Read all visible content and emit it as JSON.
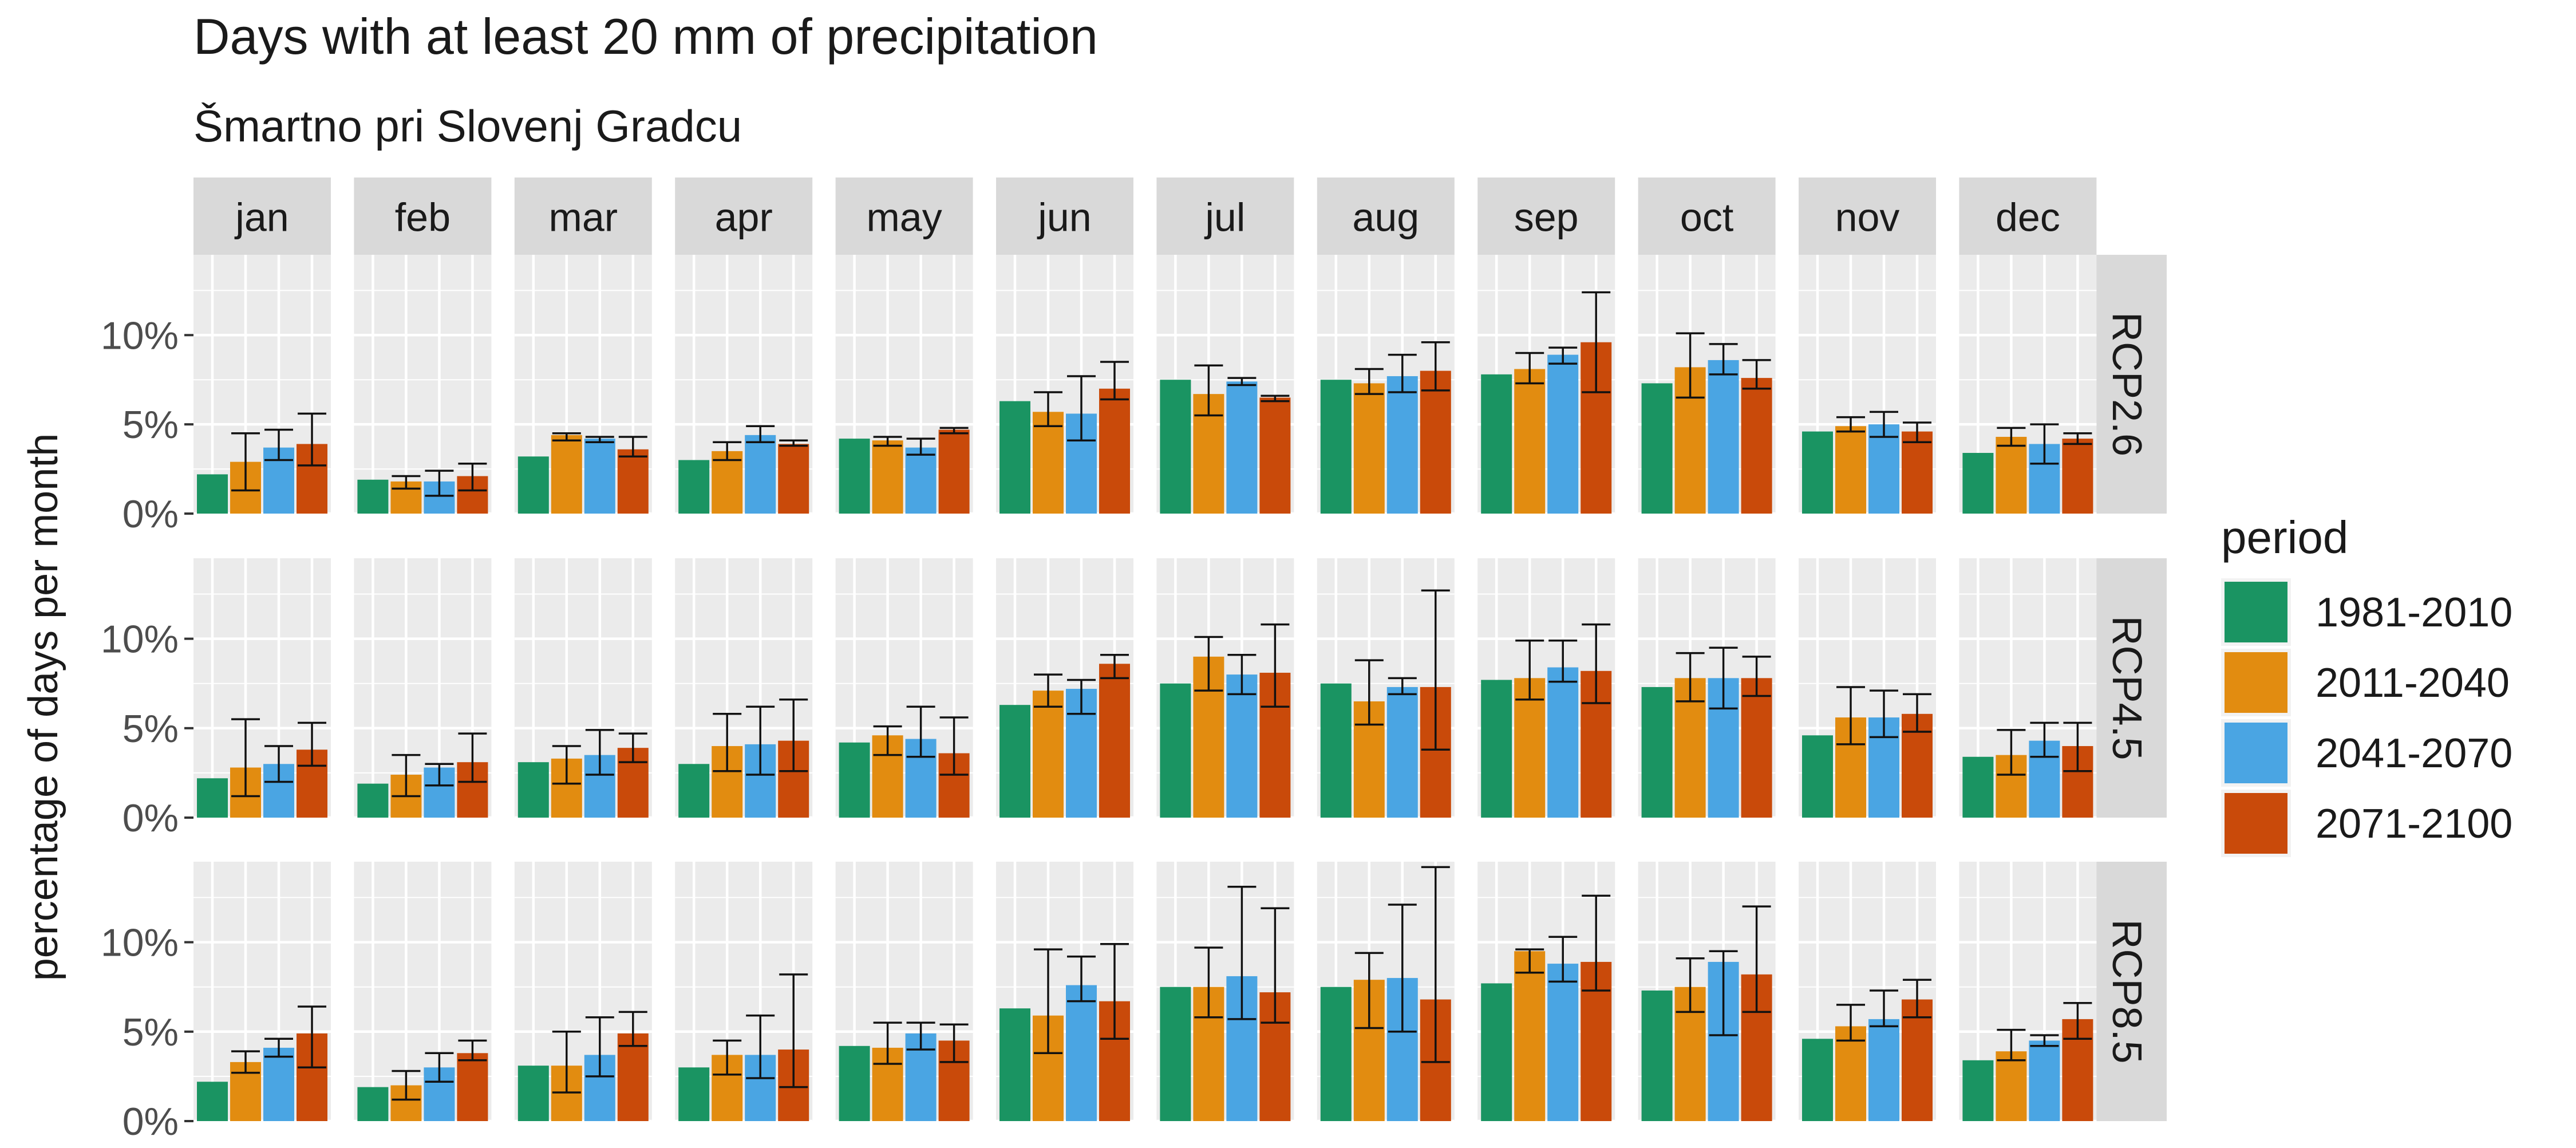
{
  "chart_data": {
    "type": "bar",
    "layout": "facet-grid",
    "title": "Days with at least 20 mm of precipitation",
    "subtitle": "Šmartno pri Slovenj Gradcu",
    "xlabel": "",
    "ylabel": "percentage of days per month",
    "ylim": [
      0,
      14.5
    ],
    "yticks": [
      0,
      5,
      10
    ],
    "ytick_labels": [
      "0%",
      "5%",
      "10%"
    ],
    "grid": true,
    "legend": {
      "title": "period",
      "position": "right",
      "entries": [
        "1981-2010",
        "2011-2040",
        "2041-2070",
        "2071-2100"
      ]
    },
    "colors": {
      "1981-2010": "#1a9462",
      "2011-2040": "#e28c10",
      "2041-2070": "#4aa5e3",
      "2071-2100": "#c94a0a",
      "panel_bg": "#ebebeb",
      "strip_bg": "#d9d9d9",
      "grid": "#ffffff",
      "text": "#1a1a1a",
      "axis_text": "#4d4d4d"
    },
    "months": [
      "jan",
      "feb",
      "mar",
      "apr",
      "may",
      "jun",
      "jul",
      "aug",
      "sep",
      "oct",
      "nov",
      "dec"
    ],
    "scenarios": [
      "RCP2.6",
      "RCP4.5",
      "RCP8.5"
    ],
    "periods": [
      "1981-2010",
      "2011-2040",
      "2041-2070",
      "2071-2100"
    ],
    "values": {
      "RCP2.6": [
        [
          2.2,
          2.9,
          3.7,
          3.9
        ],
        [
          1.9,
          1.8,
          1.8,
          2.1
        ],
        [
          3.2,
          4.4,
          4.2,
          3.6
        ],
        [
          3.0,
          3.5,
          4.4,
          3.9
        ],
        [
          4.2,
          4.1,
          3.7,
          4.7
        ],
        [
          6.3,
          5.7,
          5.6,
          7.0
        ],
        [
          7.5,
          6.7,
          7.4,
          6.5
        ],
        [
          7.5,
          7.3,
          7.7,
          8.0
        ],
        [
          7.8,
          8.1,
          8.9,
          9.6
        ],
        [
          7.3,
          8.2,
          8.6,
          7.6
        ],
        [
          4.6,
          4.9,
          5.0,
          4.6
        ],
        [
          3.4,
          4.3,
          3.9,
          4.2
        ]
      ],
      "RCP4.5": [
        [
          2.2,
          2.8,
          3.0,
          3.8
        ],
        [
          1.9,
          2.4,
          2.8,
          3.1
        ],
        [
          3.1,
          3.3,
          3.5,
          3.9
        ],
        [
          3.0,
          4.0,
          4.1,
          4.3
        ],
        [
          4.2,
          4.6,
          4.4,
          3.6
        ],
        [
          6.3,
          7.1,
          7.2,
          8.6
        ],
        [
          7.5,
          9.0,
          8.0,
          8.1
        ],
        [
          7.5,
          6.5,
          7.3,
          7.3
        ],
        [
          7.7,
          7.8,
          8.4,
          8.2
        ],
        [
          7.3,
          7.8,
          7.8,
          7.8
        ],
        [
          4.6,
          5.6,
          5.6,
          5.8
        ],
        [
          3.4,
          3.5,
          4.3,
          4.0
        ]
      ],
      "RCP8.5": [
        [
          2.2,
          3.3,
          4.1,
          4.9
        ],
        [
          1.9,
          2.0,
          3.0,
          3.8
        ],
        [
          3.1,
          3.1,
          3.7,
          4.9
        ],
        [
          3.0,
          3.7,
          3.7,
          4.0
        ],
        [
          4.2,
          4.1,
          4.9,
          4.5
        ],
        [
          6.3,
          5.9,
          7.6,
          6.7
        ],
        [
          7.5,
          7.5,
          8.1,
          7.2
        ],
        [
          7.5,
          7.9,
          8.0,
          6.8
        ],
        [
          7.7,
          9.5,
          8.8,
          8.9
        ],
        [
          7.3,
          7.5,
          8.9,
          8.2
        ],
        [
          4.6,
          5.3,
          5.7,
          6.8
        ],
        [
          3.4,
          3.9,
          4.5,
          5.7
        ]
      ]
    },
    "error_bars": {
      "RCP2.6": [
        [
          null,
          [
            1.3,
            4.5
          ],
          [
            3.0,
            4.7
          ],
          [
            2.7,
            5.6
          ]
        ],
        [
          null,
          [
            1.4,
            2.1
          ],
          [
            1.0,
            2.4
          ],
          [
            1.3,
            2.8
          ]
        ],
        [
          null,
          [
            4.1,
            4.5
          ],
          [
            4.0,
            4.3
          ],
          [
            3.2,
            4.3
          ]
        ],
        [
          null,
          [
            3.0,
            4.0
          ],
          [
            4.0,
            4.9
          ],
          [
            3.8,
            4.1
          ]
        ],
        [
          null,
          [
            3.8,
            4.3
          ],
          [
            3.3,
            4.2
          ],
          [
            4.5,
            4.8
          ]
        ],
        [
          null,
          [
            4.9,
            6.8
          ],
          [
            4.1,
            7.7
          ],
          [
            6.4,
            8.5
          ]
        ],
        [
          null,
          [
            5.5,
            8.3
          ],
          [
            7.2,
            7.6
          ],
          [
            6.3,
            6.6
          ]
        ],
        [
          null,
          [
            6.7,
            8.1
          ],
          [
            6.8,
            8.9
          ],
          [
            6.9,
            9.6
          ]
        ],
        [
          null,
          [
            7.3,
            9.0
          ],
          [
            8.4,
            9.3
          ],
          [
            6.8,
            12.4
          ]
        ],
        [
          null,
          [
            6.5,
            10.1
          ],
          [
            7.8,
            9.5
          ],
          [
            7.0,
            8.6
          ]
        ],
        [
          null,
          [
            4.6,
            5.4
          ],
          [
            4.3,
            5.7
          ],
          [
            4.0,
            5.1
          ]
        ],
        [
          null,
          [
            3.8,
            4.8
          ],
          [
            2.8,
            5.0
          ],
          [
            3.9,
            4.5
          ]
        ]
      ],
      "RCP4.5": [
        [
          null,
          [
            1.2,
            5.5
          ],
          [
            2.0,
            4.0
          ],
          [
            2.9,
            5.3
          ]
        ],
        [
          null,
          [
            1.2,
            3.5
          ],
          [
            1.8,
            3.0
          ],
          [
            2.0,
            4.7
          ]
        ],
        [
          null,
          [
            1.9,
            4.0
          ],
          [
            2.4,
            4.9
          ],
          [
            3.1,
            4.7
          ]
        ],
        [
          null,
          [
            2.6,
            5.8
          ],
          [
            2.4,
            6.2
          ],
          [
            2.6,
            6.6
          ]
        ],
        [
          null,
          [
            3.5,
            5.1
          ],
          [
            3.4,
            6.2
          ],
          [
            2.4,
            5.6
          ]
        ],
        [
          null,
          [
            6.2,
            8.0
          ],
          [
            5.8,
            7.7
          ],
          [
            7.8,
            9.1
          ]
        ],
        [
          null,
          [
            7.1,
            10.1
          ],
          [
            6.9,
            9.1
          ],
          [
            6.2,
            10.8
          ]
        ],
        [
          null,
          [
            5.2,
            8.8
          ],
          [
            6.9,
            7.8
          ],
          [
            3.8,
            12.7
          ]
        ],
        [
          null,
          [
            6.6,
            9.9
          ],
          [
            7.6,
            9.9
          ],
          [
            6.4,
            10.8
          ]
        ],
        [
          null,
          [
            6.5,
            9.2
          ],
          [
            6.1,
            9.5
          ],
          [
            6.8,
            9.0
          ]
        ],
        [
          null,
          [
            4.1,
            7.3
          ],
          [
            4.5,
            7.1
          ],
          [
            4.8,
            6.9
          ]
        ],
        [
          null,
          [
            2.4,
            4.9
          ],
          [
            3.4,
            5.3
          ],
          [
            2.6,
            5.3
          ]
        ]
      ],
      "RCP8.5": [
        [
          null,
          [
            2.7,
            3.9
          ],
          [
            3.6,
            4.6
          ],
          [
            3.0,
            6.4
          ]
        ],
        [
          null,
          [
            1.2,
            2.8
          ],
          [
            2.2,
            3.8
          ],
          [
            3.4,
            4.5
          ]
        ],
        [
          null,
          [
            1.6,
            5.0
          ],
          [
            2.5,
            5.8
          ],
          [
            4.2,
            6.1
          ]
        ],
        [
          null,
          [
            2.6,
            4.5
          ],
          [
            2.4,
            5.9
          ],
          [
            1.9,
            8.2
          ]
        ],
        [
          null,
          [
            3.2,
            5.5
          ],
          [
            4.0,
            5.5
          ],
          [
            3.3,
            5.4
          ]
        ],
        [
          null,
          [
            3.8,
            9.6
          ],
          [
            6.7,
            9.2
          ],
          [
            4.6,
            9.9
          ]
        ],
        [
          null,
          [
            5.8,
            9.7
          ],
          [
            5.7,
            13.1
          ],
          [
            5.5,
            11.9
          ]
        ],
        [
          null,
          [
            5.2,
            9.4
          ],
          [
            5.0,
            12.1
          ],
          [
            3.3,
            14.2
          ]
        ],
        [
          null,
          [
            8.3,
            9.6
          ],
          [
            7.8,
            10.3
          ],
          [
            7.3,
            12.6
          ]
        ],
        [
          null,
          [
            6.1,
            9.1
          ],
          [
            4.8,
            9.5
          ],
          [
            6.1,
            12.0
          ]
        ],
        [
          null,
          [
            4.5,
            6.5
          ],
          [
            5.3,
            7.3
          ],
          [
            5.8,
            7.9
          ]
        ],
        [
          null,
          [
            3.4,
            5.1
          ],
          [
            4.2,
            4.8
          ],
          [
            4.6,
            6.6
          ]
        ]
      ]
    }
  }
}
